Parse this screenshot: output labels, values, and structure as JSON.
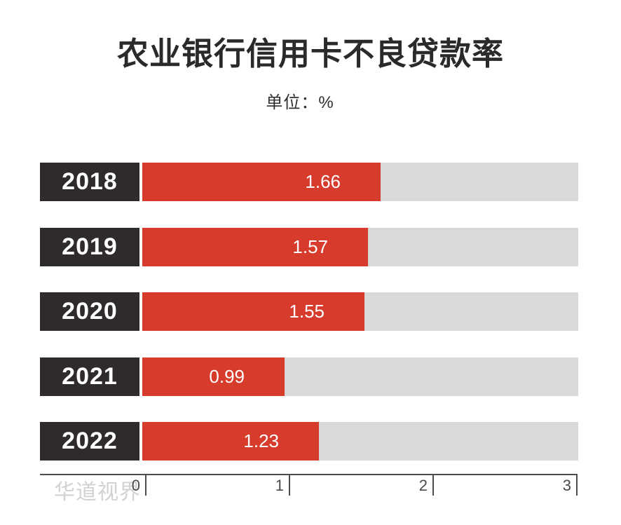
{
  "title": "农业银行信用卡不良贷款率",
  "subtitle": "单位：%",
  "watermark": "华道视界",
  "chart_data": {
    "type": "bar",
    "orientation": "horizontal",
    "title": "农业银行信用卡不良贷款率",
    "unit_label": "单位：%",
    "categories": [
      "2018",
      "2019",
      "2020",
      "2021",
      "2022"
    ],
    "values": [
      1.66,
      1.57,
      1.55,
      0.99,
      1.23
    ],
    "value_labels": [
      "1.66",
      "1.57",
      "1.55",
      "0.99",
      "1.23"
    ],
    "xlabel": "",
    "ylabel": "",
    "xlim": [
      0,
      3
    ],
    "x_ticks": [
      "0",
      "1",
      "2",
      "3"
    ],
    "grid": false,
    "legend": "none",
    "colors": {
      "bar": "#d63b2c",
      "track": "#d8d9d9",
      "category_box": "#2f2b2c",
      "axis": "#524b4b",
      "title_text": "#2a2a2a",
      "bar_text": "#ffffff",
      "watermark_text": "#d2d2d2"
    }
  }
}
